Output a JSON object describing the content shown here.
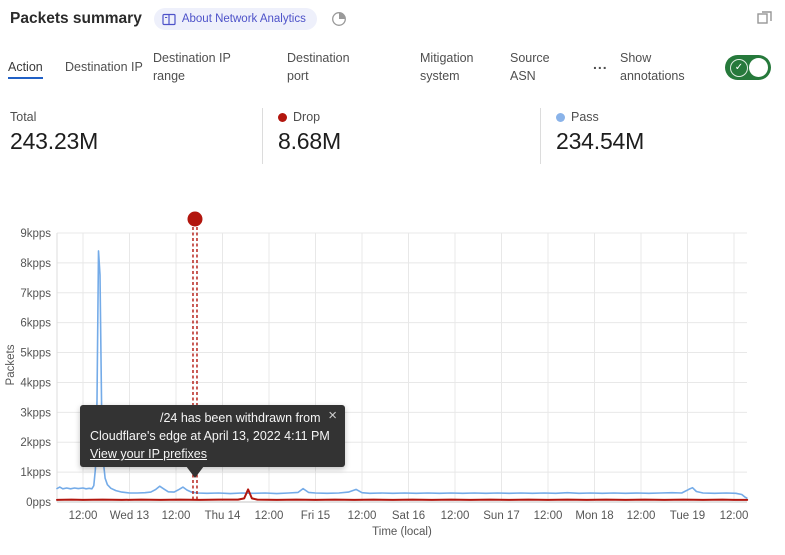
{
  "header": {
    "title": "Packets summary",
    "badge_label": "About Network Analytics"
  },
  "tabs": {
    "items": [
      {
        "label": "Action",
        "selected": true
      },
      {
        "label": "Destination IP",
        "selected": false
      },
      {
        "label": "Destination IP range",
        "selected": false
      },
      {
        "label": "Destination port",
        "selected": false
      },
      {
        "label": "Mitigation system",
        "selected": false
      },
      {
        "label": "Source ASN",
        "selected": false
      }
    ],
    "more_label": "...",
    "annotations_label": "Show annotations",
    "toggle": {
      "state": "on",
      "color": "#26793b"
    }
  },
  "stats": [
    {
      "label": "Total",
      "value": "243.23M",
      "dot": ""
    },
    {
      "label": "Drop",
      "value": "8.68M",
      "dot": "#b2160e"
    },
    {
      "label": "Pass",
      "value": "234.54M",
      "dot": "#8ab3e9"
    }
  ],
  "tooltip": {
    "line1": "/24 has been withdrawn from",
    "line2": "Cloudflare's edge at April 13, 2022 4:11 PM",
    "link": "View your IP prefixes",
    "close": "×"
  },
  "chart_data": {
    "type": "line",
    "title": "Packets summary",
    "xlabel": "Time (local)",
    "ylabel": "Packets",
    "ylim_kpps": [
      0,
      9
    ],
    "xlim_hours": [
      -6.7,
      171.4
    ],
    "grid": true,
    "legend_position": "stats-row",
    "yticks": {
      "values": [
        0,
        1,
        2,
        3,
        4,
        5,
        6,
        7,
        8,
        9
      ],
      "labels": [
        "0pps",
        "1kpps",
        "2kpps",
        "3kpps",
        "4kpps",
        "5kpps",
        "6kpps",
        "7kpps",
        "8kpps",
        "9kpps"
      ]
    },
    "xticks": {
      "hours": [
        0,
        12,
        24,
        36,
        48,
        60,
        72,
        84,
        96,
        108,
        120,
        132,
        144,
        156,
        168
      ],
      "labels": [
        "12:00",
        "Wed 13",
        "12:00",
        "Thu 14",
        "12:00",
        "Fri 15",
        "12:00",
        "Sat 16",
        "12:00",
        "Sun 17",
        "12:00",
        "Mon 18",
        "12:00",
        "Tue 19",
        "12:00"
      ]
    },
    "series": [
      {
        "name": "Pass",
        "color": "#74abe8",
        "width": 1.6,
        "points_h_kpps": [
          [
            -6.7,
            0.45
          ],
          [
            -6,
            0.5
          ],
          [
            -5.2,
            0.44
          ],
          [
            -4.2,
            0.47
          ],
          [
            -3.2,
            0.44
          ],
          [
            -2.2,
            0.47
          ],
          [
            -1.2,
            0.45
          ],
          [
            0,
            0.47
          ],
          [
            0.8,
            0.44
          ],
          [
            1.6,
            0.46
          ],
          [
            2.3,
            0.44
          ],
          [
            2.8,
            0.55
          ],
          [
            3.2,
            1.1
          ],
          [
            3.6,
            3.4
          ],
          [
            4.0,
            8.4
          ],
          [
            4.4,
            7.6
          ],
          [
            4.8,
            3.2
          ],
          [
            5.2,
            1.4
          ],
          [
            5.7,
            0.8
          ],
          [
            6.3,
            0.58
          ],
          [
            7.2,
            0.46
          ],
          [
            8.5,
            0.38
          ],
          [
            10,
            0.33
          ],
          [
            12,
            0.3
          ],
          [
            14,
            0.3
          ],
          [
            16,
            0.31
          ],
          [
            17.5,
            0.33
          ],
          [
            18.8,
            0.42
          ],
          [
            19.8,
            0.53
          ],
          [
            20.8,
            0.44
          ],
          [
            22,
            0.34
          ],
          [
            23.5,
            0.33
          ],
          [
            24.8,
            0.42
          ],
          [
            25.8,
            0.5
          ],
          [
            26.8,
            0.4
          ],
          [
            28,
            0.33
          ],
          [
            29.5,
            0.3
          ],
          [
            32,
            0.29
          ],
          [
            35,
            0.3
          ],
          [
            38,
            0.28
          ],
          [
            41,
            0.3
          ],
          [
            44,
            0.29
          ],
          [
            47,
            0.3
          ],
          [
            50,
            0.28
          ],
          [
            53,
            0.3
          ],
          [
            55.5,
            0.32
          ],
          [
            56.8,
            0.45
          ],
          [
            58.2,
            0.32
          ],
          [
            60,
            0.3
          ],
          [
            63,
            0.29
          ],
          [
            66,
            0.3
          ],
          [
            68.5,
            0.33
          ],
          [
            70.5,
            0.42
          ],
          [
            72,
            0.31
          ],
          [
            74,
            0.29
          ],
          [
            77,
            0.3
          ],
          [
            80,
            0.29
          ],
          [
            83,
            0.3
          ],
          [
            86,
            0.29
          ],
          [
            89,
            0.3
          ],
          [
            92,
            0.29
          ],
          [
            95,
            0.3
          ],
          [
            98,
            0.29
          ],
          [
            101,
            0.3
          ],
          [
            104,
            0.29
          ],
          [
            107,
            0.3
          ],
          [
            110,
            0.29
          ],
          [
            113,
            0.3
          ],
          [
            116,
            0.29
          ],
          [
            119,
            0.3
          ],
          [
            122,
            0.29
          ],
          [
            125,
            0.31
          ],
          [
            128,
            0.29
          ],
          [
            131,
            0.3
          ],
          [
            134,
            0.29
          ],
          [
            137,
            0.3
          ],
          [
            140,
            0.29
          ],
          [
            143,
            0.3
          ],
          [
            146,
            0.29
          ],
          [
            149,
            0.3
          ],
          [
            152,
            0.31
          ],
          [
            154.5,
            0.3
          ],
          [
            156.3,
            0.42
          ],
          [
            157.3,
            0.48
          ],
          [
            158.3,
            0.35
          ],
          [
            160,
            0.3
          ],
          [
            163,
            0.29
          ],
          [
            166,
            0.3
          ],
          [
            168.5,
            0.29
          ],
          [
            170,
            0.25
          ],
          [
            170.9,
            0.16
          ],
          [
            171.3,
            0.13
          ]
        ]
      },
      {
        "name": "Drop",
        "color": "#b2160e",
        "width": 2,
        "points_h_kpps": [
          [
            -6.7,
            0.07
          ],
          [
            -3,
            0.08
          ],
          [
            0,
            0.07
          ],
          [
            5,
            0.08
          ],
          [
            10,
            0.07
          ],
          [
            15,
            0.08
          ],
          [
            20,
            0.07
          ],
          [
            25,
            0.08
          ],
          [
            30,
            0.07
          ],
          [
            35,
            0.08
          ],
          [
            40,
            0.08
          ],
          [
            41.6,
            0.12
          ],
          [
            42.6,
            0.42
          ],
          [
            43.6,
            0.12
          ],
          [
            45,
            0.08
          ],
          [
            50,
            0.07
          ],
          [
            55,
            0.08
          ],
          [
            60,
            0.07
          ],
          [
            65,
            0.08
          ],
          [
            70,
            0.07
          ],
          [
            75,
            0.08
          ],
          [
            80,
            0.07
          ],
          [
            85,
            0.08
          ],
          [
            90,
            0.07
          ],
          [
            95,
            0.08
          ],
          [
            100,
            0.07
          ],
          [
            105,
            0.08
          ],
          [
            110,
            0.07
          ],
          [
            115,
            0.08
          ],
          [
            120,
            0.07
          ],
          [
            125,
            0.08
          ],
          [
            130,
            0.07
          ],
          [
            135,
            0.08
          ],
          [
            140,
            0.07
          ],
          [
            145,
            0.08
          ],
          [
            150,
            0.07
          ],
          [
            155,
            0.08
          ],
          [
            160,
            0.07
          ],
          [
            165,
            0.08
          ],
          [
            168,
            0.07
          ],
          [
            171.4,
            0.07
          ]
        ]
      }
    ],
    "annotation": {
      "x_hours": 28.9,
      "dot_color": "#b2160e",
      "line_style": "double-dashed-vertical",
      "time_label": "April 13, 2022 4:11 PM"
    }
  }
}
